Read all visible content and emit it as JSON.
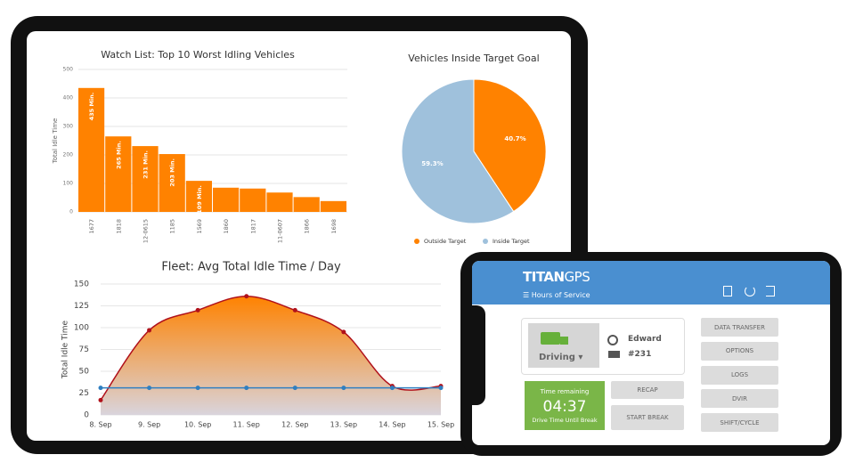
{
  "chart_data": [
    {
      "type": "bar",
      "title": "Watch List: Top 10 Worst Idling Vehicles",
      "y_label": "Total Idle Time",
      "categories": [
        "1677",
        "1818",
        "12-0615",
        "1185",
        "1569",
        "1860",
        "1817",
        "11-0607",
        "1866",
        "1698"
      ],
      "values": [
        435,
        265,
        231,
        203,
        109,
        85,
        82,
        68,
        52,
        38
      ],
      "value_labels": [
        "435 Min.",
        "265 Min.",
        "231 Min.",
        "203 Min.",
        "109 Min.",
        null,
        null,
        null,
        null,
        null
      ],
      "color": "#ff8200",
      "ylim": [
        0,
        500
      ],
      "yticks": [
        0,
        100,
        200,
        300,
        400,
        500
      ],
      "grid": true
    },
    {
      "type": "pie",
      "title": "Vehicles Inside Target Goal",
      "categories": [
        "Outside Target",
        "Inside Target"
      ],
      "values": [
        40.7,
        59.3
      ],
      "value_labels": [
        "40.7%",
        "59.3%"
      ],
      "colors": [
        "#ff8200",
        "#9fc1dc"
      ],
      "legend": "bottom"
    },
    {
      "type": "line",
      "title": "Fleet: Avg Total Idle Time / Day",
      "y_label": "Total Idle Time",
      "categories": [
        "8. Sep",
        "9. Sep",
        "10. Sep",
        "11. Sep",
        "12. Sep",
        "13. Sep",
        "14. Sep",
        "15. Sep"
      ],
      "series": [
        {
          "color": "#b0111b",
          "area": true,
          "values": [
            17,
            97,
            120,
            136,
            120,
            95,
            33,
            33
          ]
        },
        {
          "color": "#2f7fc1",
          "area": false,
          "values": [
            31,
            31,
            31,
            31,
            31,
            31,
            31,
            31
          ]
        }
      ],
      "ylim": [
        0,
        150
      ],
      "yticks": [
        0,
        25,
        50,
        75,
        100,
        125,
        150
      ],
      "grid": true
    }
  ],
  "phone": {
    "brand_main": "TITAN",
    "brand_suffix": "GPS",
    "menu": "Hours of Service",
    "status": "Driving",
    "driver": "Edward",
    "vehicle": "#231",
    "timer_title": "Time remaining",
    "timer": "04:37",
    "timer_caption": "Drive Time Until Break",
    "actions": [
      "RECAP",
      "START BREAK"
    ],
    "menu_buttons": [
      "DATA TRANSFER",
      "OPTIONS",
      "LOGS",
      "DVIR",
      "SHIFT/CYCLE"
    ]
  }
}
